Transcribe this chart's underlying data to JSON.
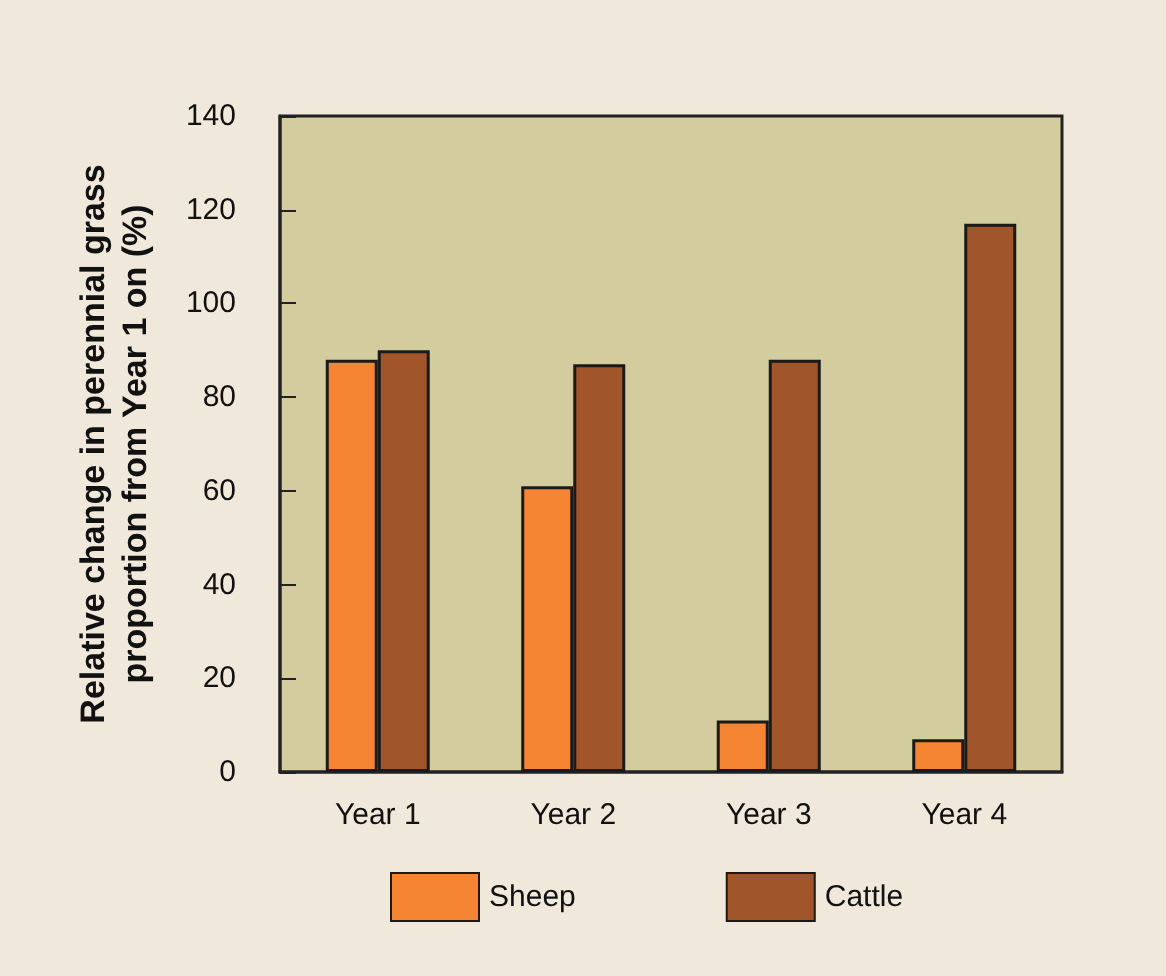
{
  "chart_data": {
    "type": "bar",
    "ylabel": "Relative change in perennial grass\nproportion from Year 1 on (%)",
    "categories": [
      "Year 1",
      "Year 2",
      "Year 3",
      "Year 4"
    ],
    "series": [
      {
        "name": "Sheep",
        "color": "#f58433",
        "values": [
          88,
          61,
          11,
          7
        ]
      },
      {
        "name": "Cattle",
        "color": "#a0552a",
        "values": [
          90,
          87,
          88,
          117
        ]
      }
    ],
    "ylim": [
      0,
      140
    ],
    "yticks": [
      0,
      20,
      40,
      60,
      80,
      100,
      120,
      140
    ],
    "grid": false,
    "legend": "bottom"
  }
}
